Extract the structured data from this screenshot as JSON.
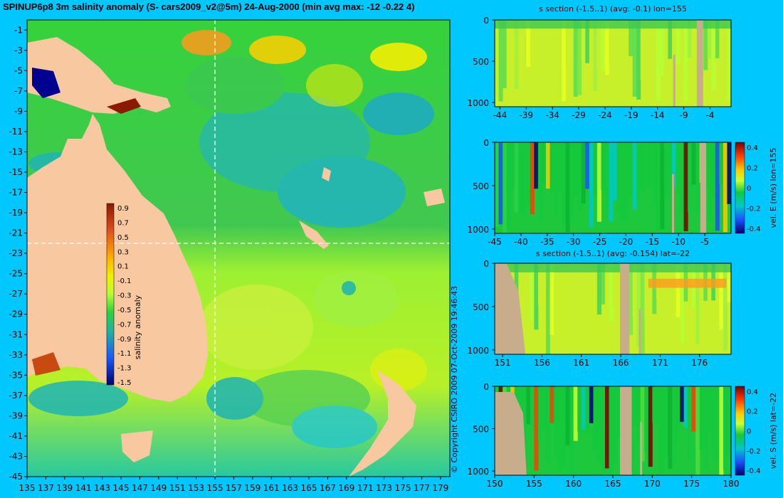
{
  "title": "SPINUP6p8 3m salinity anomaly (S- cars2009_v2@5m) 24-Aug-2000 (min avg max: -12 -0.22 4)",
  "copyright": "© Copyright CSIRO 2009   07-Oct-2009 19:46:43",
  "colors": {
    "background": "#00c8ff",
    "land": "#f8c8a0",
    "section_land": "#c8ad8c",
    "section_border": "#000000"
  },
  "chart_data": [
    {
      "type": "heatmap",
      "name": "map",
      "x_ticks": [
        "135",
        "137",
        "139",
        "141",
        "143",
        "145",
        "147",
        "149",
        "151",
        "153",
        "155",
        "157",
        "159",
        "161",
        "163",
        "165",
        "167",
        "169",
        "171",
        "173",
        "175",
        "177",
        "179"
      ],
      "y_ticks": [
        "-1",
        "-3",
        "-5",
        "-7",
        "-9",
        "-11",
        "-13",
        "-15",
        "-17",
        "-19",
        "-21",
        "-23",
        "-25",
        "-27",
        "-29",
        "-31",
        "-33",
        "-35",
        "-37",
        "-39",
        "-41",
        "-43",
        "-45"
      ],
      "xlim": [
        135,
        180
      ],
      "ylim": [
        -45,
        0
      ],
      "crosshair": {
        "lon": 155,
        "lat": -22
      },
      "colorbar": {
        "label": "salinity anomaly",
        "ticks": [
          "0.9",
          "0.7",
          "0.5",
          "0.3",
          "0.1",
          "-0.1",
          "-0.3",
          "-0.5",
          "-0.7",
          "-0.9",
          "-1.1",
          "-1.3",
          "-1.5"
        ],
        "range": [
          -1.5,
          0.9
        ]
      }
    },
    {
      "type": "heatmap",
      "name": "s-section-lon",
      "title": "s section (-1.5..1) (avg: -0.1) lon=155",
      "x_ticks": [
        "-44",
        "-39",
        "-34",
        "-29",
        "-24",
        "-19",
        "-14",
        "-9",
        "-4"
      ],
      "y_ticks": [
        "0",
        "500",
        "1000"
      ],
      "xlim": [
        -45,
        0
      ],
      "ylim": [
        1050,
        0
      ]
    },
    {
      "type": "heatmap",
      "name": "velE-section-lon",
      "x_ticks": [
        "-45",
        "-40",
        "-35",
        "-30",
        "-25",
        "-20",
        "-15",
        "-10",
        "-5"
      ],
      "y_ticks": [
        "0",
        "500",
        "1000"
      ],
      "xlim": [
        -45,
        0
      ],
      "ylim": [
        1050,
        0
      ],
      "colorbar": {
        "label": "vel. E (m/s) lon=155",
        "ticks": [
          "0.4",
          "0.2",
          "0",
          "-0.2",
          "-0.4"
        ],
        "range": [
          -0.45,
          0.45
        ]
      }
    },
    {
      "type": "heatmap",
      "name": "s-section-lat",
      "title": "s section (-1.5..1) (avg: -0.154) lat=-22",
      "x_ticks": [
        "151",
        "156",
        "161",
        "166",
        "171",
        "176"
      ],
      "y_ticks": [
        "0",
        "500",
        "1000"
      ],
      "xlim": [
        150,
        180
      ],
      "ylim": [
        1050,
        0
      ]
    },
    {
      "type": "heatmap",
      "name": "velS-section-lat",
      "x_ticks": [
        "150",
        "155",
        "160",
        "165",
        "170",
        "175",
        "180"
      ],
      "y_ticks": [
        "0",
        "500",
        "1000"
      ],
      "xlim": [
        150,
        180
      ],
      "ylim": [
        1050,
        0
      ],
      "colorbar": {
        "label": "vel. S (m/s) lat=-22",
        "ticks": [
          "0.4",
          "0.2",
          "0",
          "-0.2",
          "-0.4"
        ],
        "range": [
          -0.45,
          0.45
        ]
      }
    }
  ]
}
